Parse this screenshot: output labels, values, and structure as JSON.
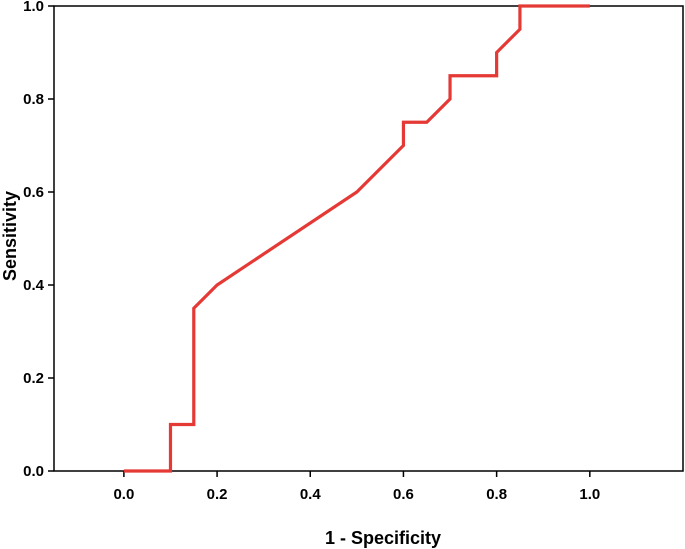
{
  "chart_data": {
    "type": "line",
    "title": "",
    "xlabel": "1 - Specificity",
    "ylabel": "Sensitivity",
    "xlim": [
      -0.15,
      1.2
    ],
    "ylim": [
      0.0,
      1.0
    ],
    "x_ticks": [
      "0.0",
      "0.2",
      "0.4",
      "0.6",
      "0.8",
      "1.0"
    ],
    "y_ticks": [
      "0.0",
      "0.2",
      "0.4",
      "0.6",
      "0.8",
      "1.0"
    ],
    "grid": false,
    "series": [
      {
        "color": "#e53935",
        "points": [
          [
            0.0,
            0.0
          ],
          [
            0.1,
            0.0
          ],
          [
            0.1,
            0.1
          ],
          [
            0.15,
            0.1
          ],
          [
            0.15,
            0.35
          ],
          [
            0.2,
            0.4
          ],
          [
            0.5,
            0.6
          ],
          [
            0.6,
            0.7
          ],
          [
            0.6,
            0.75
          ],
          [
            0.65,
            0.75
          ],
          [
            0.7,
            0.8
          ],
          [
            0.7,
            0.85
          ],
          [
            0.8,
            0.85
          ],
          [
            0.8,
            0.9
          ],
          [
            0.85,
            0.95
          ],
          [
            0.85,
            1.0
          ],
          [
            1.0,
            1.0
          ]
        ]
      }
    ]
  }
}
